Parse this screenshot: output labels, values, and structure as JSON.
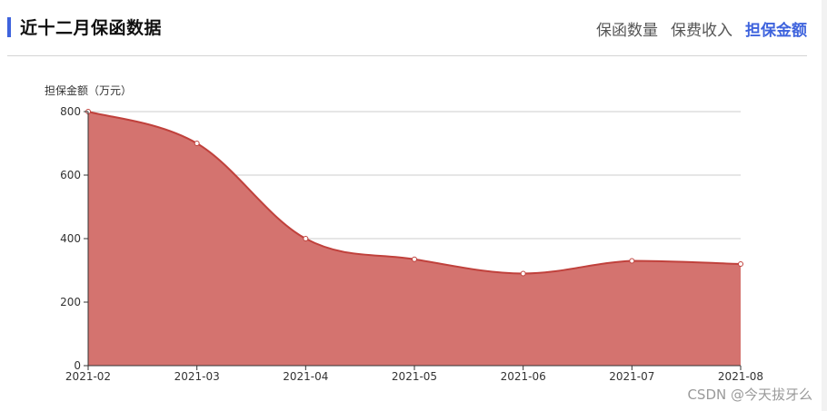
{
  "header": {
    "title": "近十二月保函数据",
    "tabs": [
      {
        "label": "保函数量",
        "active": false
      },
      {
        "label": "保费收入",
        "active": false
      },
      {
        "label": "担保金额",
        "active": true
      }
    ]
  },
  "watermark": "CSDN @今天拔牙么",
  "colors": {
    "accent": "#3e63dd",
    "area_fill": "#d4736f",
    "line": "#c0413c"
  },
  "chart_data": {
    "type": "area",
    "ylabel": "担保金额（万元）",
    "xlabel": "",
    "x": [
      "2021-02",
      "2021-03",
      "2021-04",
      "2021-05",
      "2021-06",
      "2021-07",
      "2021-08"
    ],
    "series": [
      {
        "values": [
          800,
          700,
          400,
          335,
          290,
          330,
          320
        ]
      }
    ],
    "ylim": [
      0,
      800
    ],
    "yticks": [
      0,
      200,
      400,
      600,
      800
    ],
    "grid": true,
    "smooth": true
  }
}
